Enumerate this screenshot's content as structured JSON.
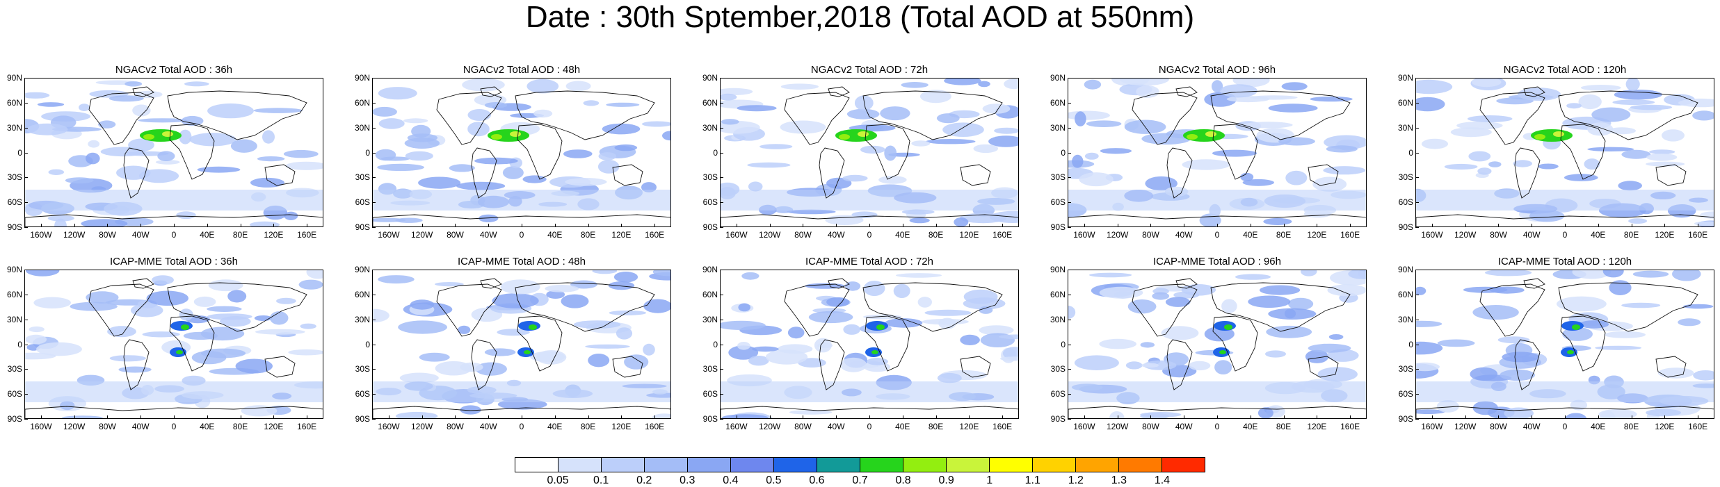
{
  "title": "Date : 30th Sptember,2018 (Total AOD at 550nm)",
  "panels": [
    {
      "title": "NGACv2 Total AOD : 36h"
    },
    {
      "title": "NGACv2 Total AOD : 48h"
    },
    {
      "title": "NGACv2 Total AOD : 72h"
    },
    {
      "title": "NGACv2 Total AOD : 96h"
    },
    {
      "title": "NGACv2 Total AOD : 120h"
    },
    {
      "title": "ICAP-MME Total AOD : 36h"
    },
    {
      "title": "ICAP-MME Total AOD : 48h"
    },
    {
      "title": "ICAP-MME Total AOD : 72h"
    },
    {
      "title": "ICAP-MME Total AOD : 96h"
    },
    {
      "title": "ICAP-MME Total AOD : 120h"
    }
  ],
  "lat_ticks": [
    "90N",
    "60N",
    "30N",
    "0",
    "30S",
    "60S",
    "90S"
  ],
  "lon_ticks": [
    "160W",
    "120W",
    "80W",
    "40W",
    "0",
    "40E",
    "80E",
    "120E",
    "160E"
  ],
  "colorbar": {
    "colors": [
      "#ffffff",
      "#d6e2fb",
      "#bccffa",
      "#a4bdf7",
      "#8aa7f3",
      "#6e87ee",
      "#1f64e8",
      "#129a98",
      "#26d41c",
      "#93ee10",
      "#c9f43a",
      "#ffff00",
      "#ffd200",
      "#ffa400",
      "#ff7a00",
      "#ff2a00"
    ],
    "labels": [
      "0.05",
      "0.1",
      "0.2",
      "0.3",
      "0.4",
      "0.5",
      "0.6",
      "0.7",
      "0.8",
      "0.9",
      "1",
      "1.1",
      "1.2",
      "1.3",
      "1.4"
    ]
  }
}
